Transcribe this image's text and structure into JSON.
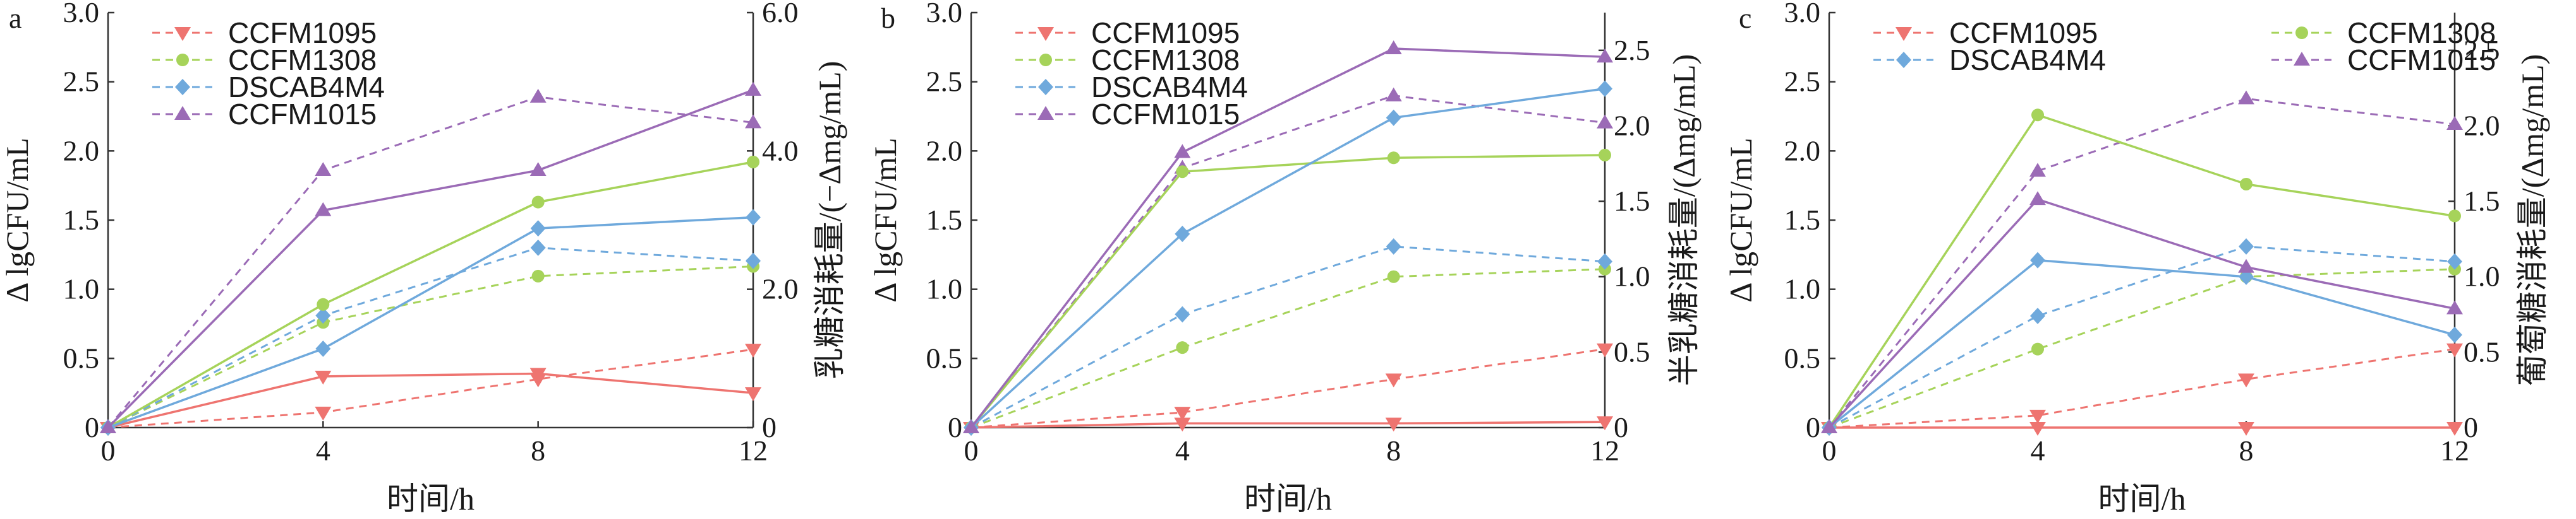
{
  "colors": {
    "CCFM1095": "#ee7470",
    "CCFM1308": "#a6d35a",
    "DSCAB4M4": "#6fa9dc",
    "CCFM1015": "#9b6bb6"
  },
  "chart_data": [
    {
      "type": "line",
      "panel_label": "a",
      "x": [
        0,
        4,
        8,
        12
      ],
      "x_ticks": [
        "0",
        "4",
        "8",
        "12"
      ],
      "xlabel": "时间/h",
      "ylabel_left": "Δ lgCFU/mL",
      "ylabel_right": "乳糖消耗量/(−Δmg/mL)",
      "ylim_left": [
        0,
        3.0
      ],
      "ylim_right": [
        0,
        6.0
      ],
      "yticks_left": [
        "0",
        "0.5",
        "1.0",
        "1.5",
        "2.0",
        "2.5",
        "3.0"
      ],
      "yticks_right": [
        "0",
        "2.0",
        "4.0",
        "6.0"
      ],
      "yticks_right_values": [
        0,
        2,
        4,
        6
      ],
      "legend_position": "top-left",
      "legend_columns": 1,
      "legend": [
        "CCFM1095",
        "CCFM1308",
        "DSCAB4M4",
        "CCFM1015"
      ],
      "growth_series": [
        {
          "name": "CCFM1095",
          "values": [
            0,
            0.37,
            0.39,
            0.25
          ]
        },
        {
          "name": "CCFM1308",
          "values": [
            0,
            0.89,
            1.63,
            1.92
          ]
        },
        {
          "name": "DSCAB4M4",
          "values": [
            0,
            0.57,
            1.44,
            1.52
          ]
        },
        {
          "name": "CCFM1015",
          "values": [
            0,
            1.57,
            1.86,
            2.44
          ]
        }
      ],
      "consumption_series": [
        {
          "name": "CCFM1095",
          "values": [
            0,
            0.22,
            0.7,
            1.13
          ]
        },
        {
          "name": "CCFM1308",
          "values": [
            0,
            1.52,
            2.19,
            2.33
          ]
        },
        {
          "name": "DSCAB4M4",
          "values": [
            0,
            1.62,
            2.6,
            2.41
          ]
        },
        {
          "name": "CCFM1015",
          "values": [
            0,
            3.72,
            4.78,
            4.41
          ]
        }
      ]
    },
    {
      "type": "line",
      "panel_label": "b",
      "x": [
        0,
        4,
        8,
        12
      ],
      "x_ticks": [
        "0",
        "4",
        "8",
        "12"
      ],
      "xlabel": "时间/h",
      "ylabel_left": "Δ lgCFU/mL",
      "ylabel_right": "半乳糖消耗量/(Δmg/mL)",
      "ylim_left": [
        0,
        3.0
      ],
      "ylim_right": [
        0,
        2.75
      ],
      "yticks_left": [
        "0",
        "0.5",
        "1.0",
        "1.5",
        "2.0",
        "2.5",
        "3.0"
      ],
      "yticks_right": [
        "0",
        "0.5",
        "1.0",
        "1.5",
        "2.0",
        "2.5"
      ],
      "yticks_right_values": [
        0,
        0.5,
        1.0,
        1.5,
        2.0,
        2.5
      ],
      "legend_position": "top-left",
      "legend_columns": 1,
      "legend": [
        "CCFM1095",
        "CCFM1308",
        "DSCAB4M4",
        "CCFM1015"
      ],
      "growth_series": [
        {
          "name": "CCFM1095",
          "values": [
            0,
            0.03,
            0.03,
            0.04
          ]
        },
        {
          "name": "CCFM1308",
          "values": [
            0,
            1.85,
            1.95,
            1.97
          ]
        },
        {
          "name": "DSCAB4M4",
          "values": [
            0,
            1.4,
            2.24,
            2.45
          ]
        },
        {
          "name": "CCFM1015",
          "values": [
            0,
            1.99,
            2.74,
            2.68
          ]
        }
      ],
      "consumption_series": [
        {
          "name": "CCFM1095",
          "values": [
            0,
            0.1,
            0.32,
            0.52
          ]
        },
        {
          "name": "CCFM1308",
          "values": [
            0,
            0.53,
            1.0,
            1.05
          ]
        },
        {
          "name": "DSCAB4M4",
          "values": [
            0,
            0.75,
            1.2,
            1.1
          ]
        },
        {
          "name": "CCFM1015",
          "values": [
            0,
            1.72,
            2.2,
            2.02
          ]
        }
      ]
    },
    {
      "type": "line",
      "panel_label": "c",
      "x": [
        0,
        4,
        8,
        12
      ],
      "x_ticks": [
        "0",
        "4",
        "8",
        "12"
      ],
      "xlabel": "时间/h",
      "ylabel_left": "Δ lgCFU/mL",
      "ylabel_right": "葡萄糖消耗量/(Δmg/mL)",
      "ylim_left": [
        0,
        3.0
      ],
      "ylim_right": [
        0,
        2.75
      ],
      "yticks_left": [
        "0",
        "0.5",
        "1.0",
        "1.5",
        "2.0",
        "2.5",
        "3.0"
      ],
      "yticks_right": [
        "0",
        "0.5",
        "1.0",
        "1.5",
        "2.0",
        "2.5"
      ],
      "yticks_right_values": [
        0,
        0.5,
        1.0,
        1.5,
        2.0,
        2.5
      ],
      "legend_position": "top",
      "legend_columns": 2,
      "legend": [
        "CCFM1095",
        "CCFM1308",
        "DSCAB4M4",
        "CCFM1015"
      ],
      "growth_series": [
        {
          "name": "CCFM1095",
          "values": [
            0,
            0.0,
            0.0,
            0.0
          ]
        },
        {
          "name": "CCFM1308",
          "values": [
            0,
            2.26,
            1.76,
            1.53
          ]
        },
        {
          "name": "DSCAB4M4",
          "values": [
            0,
            1.21,
            1.09,
            0.67
          ]
        },
        {
          "name": "CCFM1015",
          "values": [
            0,
            1.65,
            1.16,
            0.86
          ]
        }
      ],
      "consumption_series": [
        {
          "name": "CCFM1095",
          "values": [
            0,
            0.08,
            0.32,
            0.52
          ]
        },
        {
          "name": "CCFM1308",
          "values": [
            0,
            0.52,
            1.0,
            1.05
          ]
        },
        {
          "name": "DSCAB4M4",
          "values": [
            0,
            0.74,
            1.2,
            1.1
          ]
        },
        {
          "name": "CCFM1015",
          "values": [
            0,
            1.7,
            2.18,
            2.01
          ]
        }
      ]
    }
  ]
}
